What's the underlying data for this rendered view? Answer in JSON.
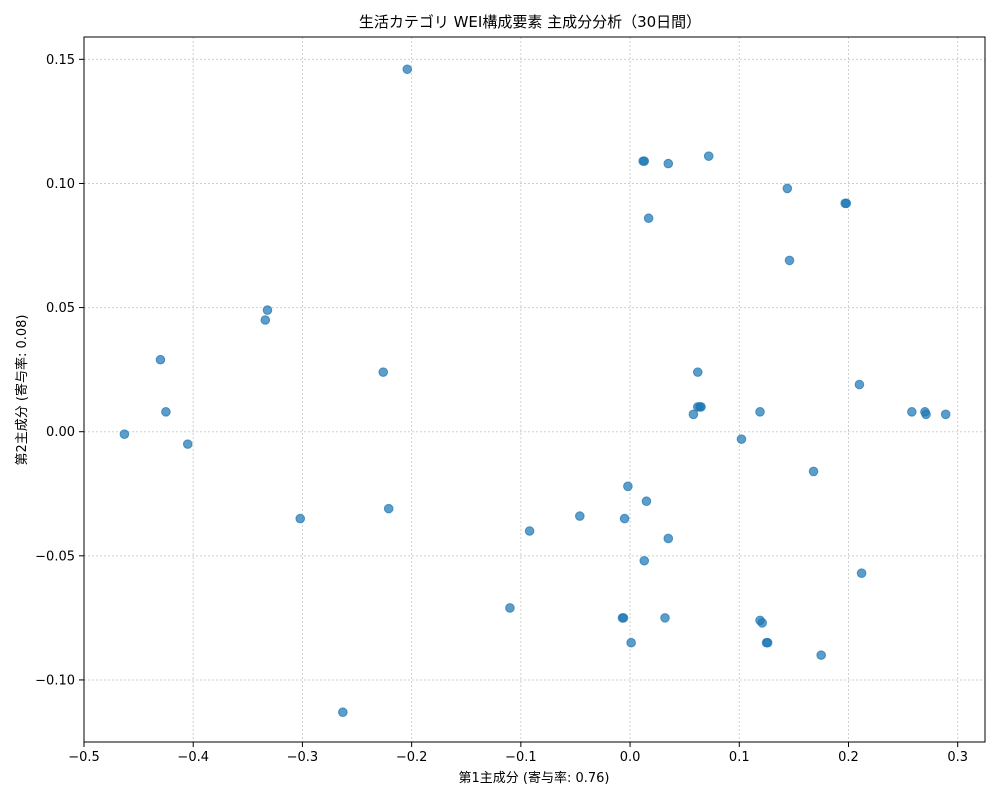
{
  "chart_data": {
    "type": "scatter",
    "title": "生活カテゴリ WEI構成要素 主成分分析（30日間）",
    "xlabel": "第1主成分 (寄与率: 0.76)",
    "ylabel": "第2主成分 (寄与率: 0.08)",
    "xlim": [
      -0.5,
      0.325
    ],
    "ylim": [
      -0.125,
      0.159
    ],
    "xticks": [
      -0.5,
      -0.4,
      -0.3,
      -0.2,
      -0.1,
      0.0,
      0.1,
      0.2,
      0.3
    ],
    "xtick_labels": [
      "−0.5",
      "−0.4",
      "−0.3",
      "−0.2",
      "−0.1",
      "0.0",
      "0.1",
      "0.2",
      "0.3"
    ],
    "yticks": [
      -0.1,
      -0.05,
      0.0,
      0.05,
      0.1,
      0.15
    ],
    "ytick_labels": [
      "−0.10",
      "−0.05",
      "0.00",
      "0.05",
      "0.10",
      "0.15"
    ],
    "grid": true,
    "color": "#1f77b4",
    "points": [
      {
        "x": -0.204,
        "y": 0.146
      },
      {
        "x": 0.012,
        "y": 0.109
      },
      {
        "x": 0.013,
        "y": 0.109
      },
      {
        "x": 0.035,
        "y": 0.108
      },
      {
        "x": 0.072,
        "y": 0.111
      },
      {
        "x": 0.144,
        "y": 0.098
      },
      {
        "x": 0.197,
        "y": 0.092
      },
      {
        "x": 0.198,
        "y": 0.092
      },
      {
        "x": 0.017,
        "y": 0.086
      },
      {
        "x": 0.146,
        "y": 0.069
      },
      {
        "x": -0.332,
        "y": 0.049
      },
      {
        "x": -0.334,
        "y": 0.045
      },
      {
        "x": -0.43,
        "y": 0.029
      },
      {
        "x": -0.226,
        "y": 0.024
      },
      {
        "x": 0.062,
        "y": 0.024
      },
      {
        "x": 0.21,
        "y": 0.019
      },
      {
        "x": -0.425,
        "y": 0.008
      },
      {
        "x": 0.062,
        "y": 0.01
      },
      {
        "x": 0.064,
        "y": 0.01
      },
      {
        "x": 0.065,
        "y": 0.01
      },
      {
        "x": 0.058,
        "y": 0.007
      },
      {
        "x": 0.119,
        "y": 0.008
      },
      {
        "x": 0.258,
        "y": 0.008
      },
      {
        "x": 0.27,
        "y": 0.008
      },
      {
        "x": 0.271,
        "y": 0.007
      },
      {
        "x": 0.289,
        "y": 0.007
      },
      {
        "x": -0.463,
        "y": -0.001
      },
      {
        "x": -0.405,
        "y": -0.005
      },
      {
        "x": 0.102,
        "y": -0.003
      },
      {
        "x": 0.168,
        "y": -0.016
      },
      {
        "x": -0.002,
        "y": -0.022
      },
      {
        "x": 0.015,
        "y": -0.028
      },
      {
        "x": -0.221,
        "y": -0.031
      },
      {
        "x": -0.302,
        "y": -0.035
      },
      {
        "x": -0.046,
        "y": -0.034
      },
      {
        "x": -0.005,
        "y": -0.035
      },
      {
        "x": -0.092,
        "y": -0.04
      },
      {
        "x": 0.035,
        "y": -0.043
      },
      {
        "x": 0.013,
        "y": -0.052
      },
      {
        "x": 0.212,
        "y": -0.057
      },
      {
        "x": -0.11,
        "y": -0.071
      },
      {
        "x": -0.007,
        "y": -0.075
      },
      {
        "x": -0.006,
        "y": -0.075
      },
      {
        "x": 0.032,
        "y": -0.075
      },
      {
        "x": 0.119,
        "y": -0.076
      },
      {
        "x": 0.121,
        "y": -0.077
      },
      {
        "x": 0.001,
        "y": -0.085
      },
      {
        "x": 0.125,
        "y": -0.085
      },
      {
        "x": 0.126,
        "y": -0.085
      },
      {
        "x": 0.175,
        "y": -0.09
      },
      {
        "x": -0.263,
        "y": -0.113
      }
    ]
  }
}
